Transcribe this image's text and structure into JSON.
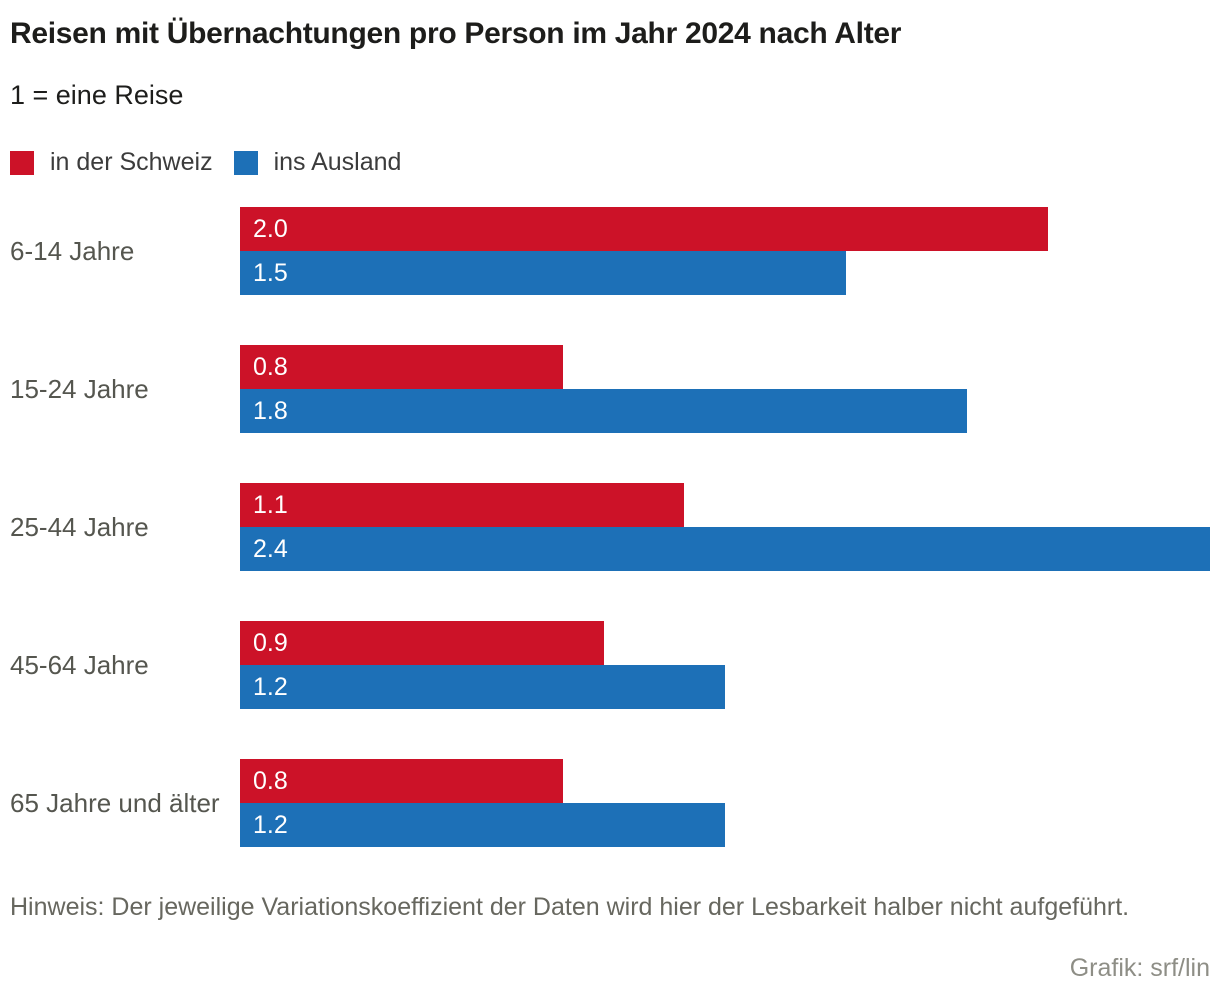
{
  "title": "Reisen mit Übernachtungen pro Person im Jahr 2024 nach Alter",
  "subtitle": "1 = eine Reise",
  "legend": {
    "items": [
      {
        "label": "in der Schweiz",
        "color": "#cc1228"
      },
      {
        "label": "ins Ausland",
        "color": "#1d70b7"
      }
    ]
  },
  "chart_data": {
    "type": "bar",
    "orientation": "horizontal",
    "categories": [
      "6-14 Jahre",
      "15-24 Jahre",
      "25-44 Jahre",
      "45-64 Jahre",
      "65 Jahre und älter"
    ],
    "series": [
      {
        "name": "in der Schweiz",
        "color": "#cc1228",
        "values": [
          2.0,
          0.8,
          1.1,
          0.9,
          0.8
        ]
      },
      {
        "name": "ins Ausland",
        "color": "#1d70b7",
        "values": [
          1.5,
          1.8,
          2.4,
          1.2,
          1.2
        ]
      }
    ],
    "xlim": [
      0,
      2.4
    ],
    "value_label_format": "one-decimal",
    "value_label_position": "inside-left",
    "grid": false,
    "axis_ticks": "none",
    "legend_position": "top-left"
  },
  "footnote": "Hinweis: Der jeweilige Variationskoeffizient der Daten wird hier der Lesbarkeit halber nicht aufgeführt.",
  "credit": "Grafik: srf/lin"
}
